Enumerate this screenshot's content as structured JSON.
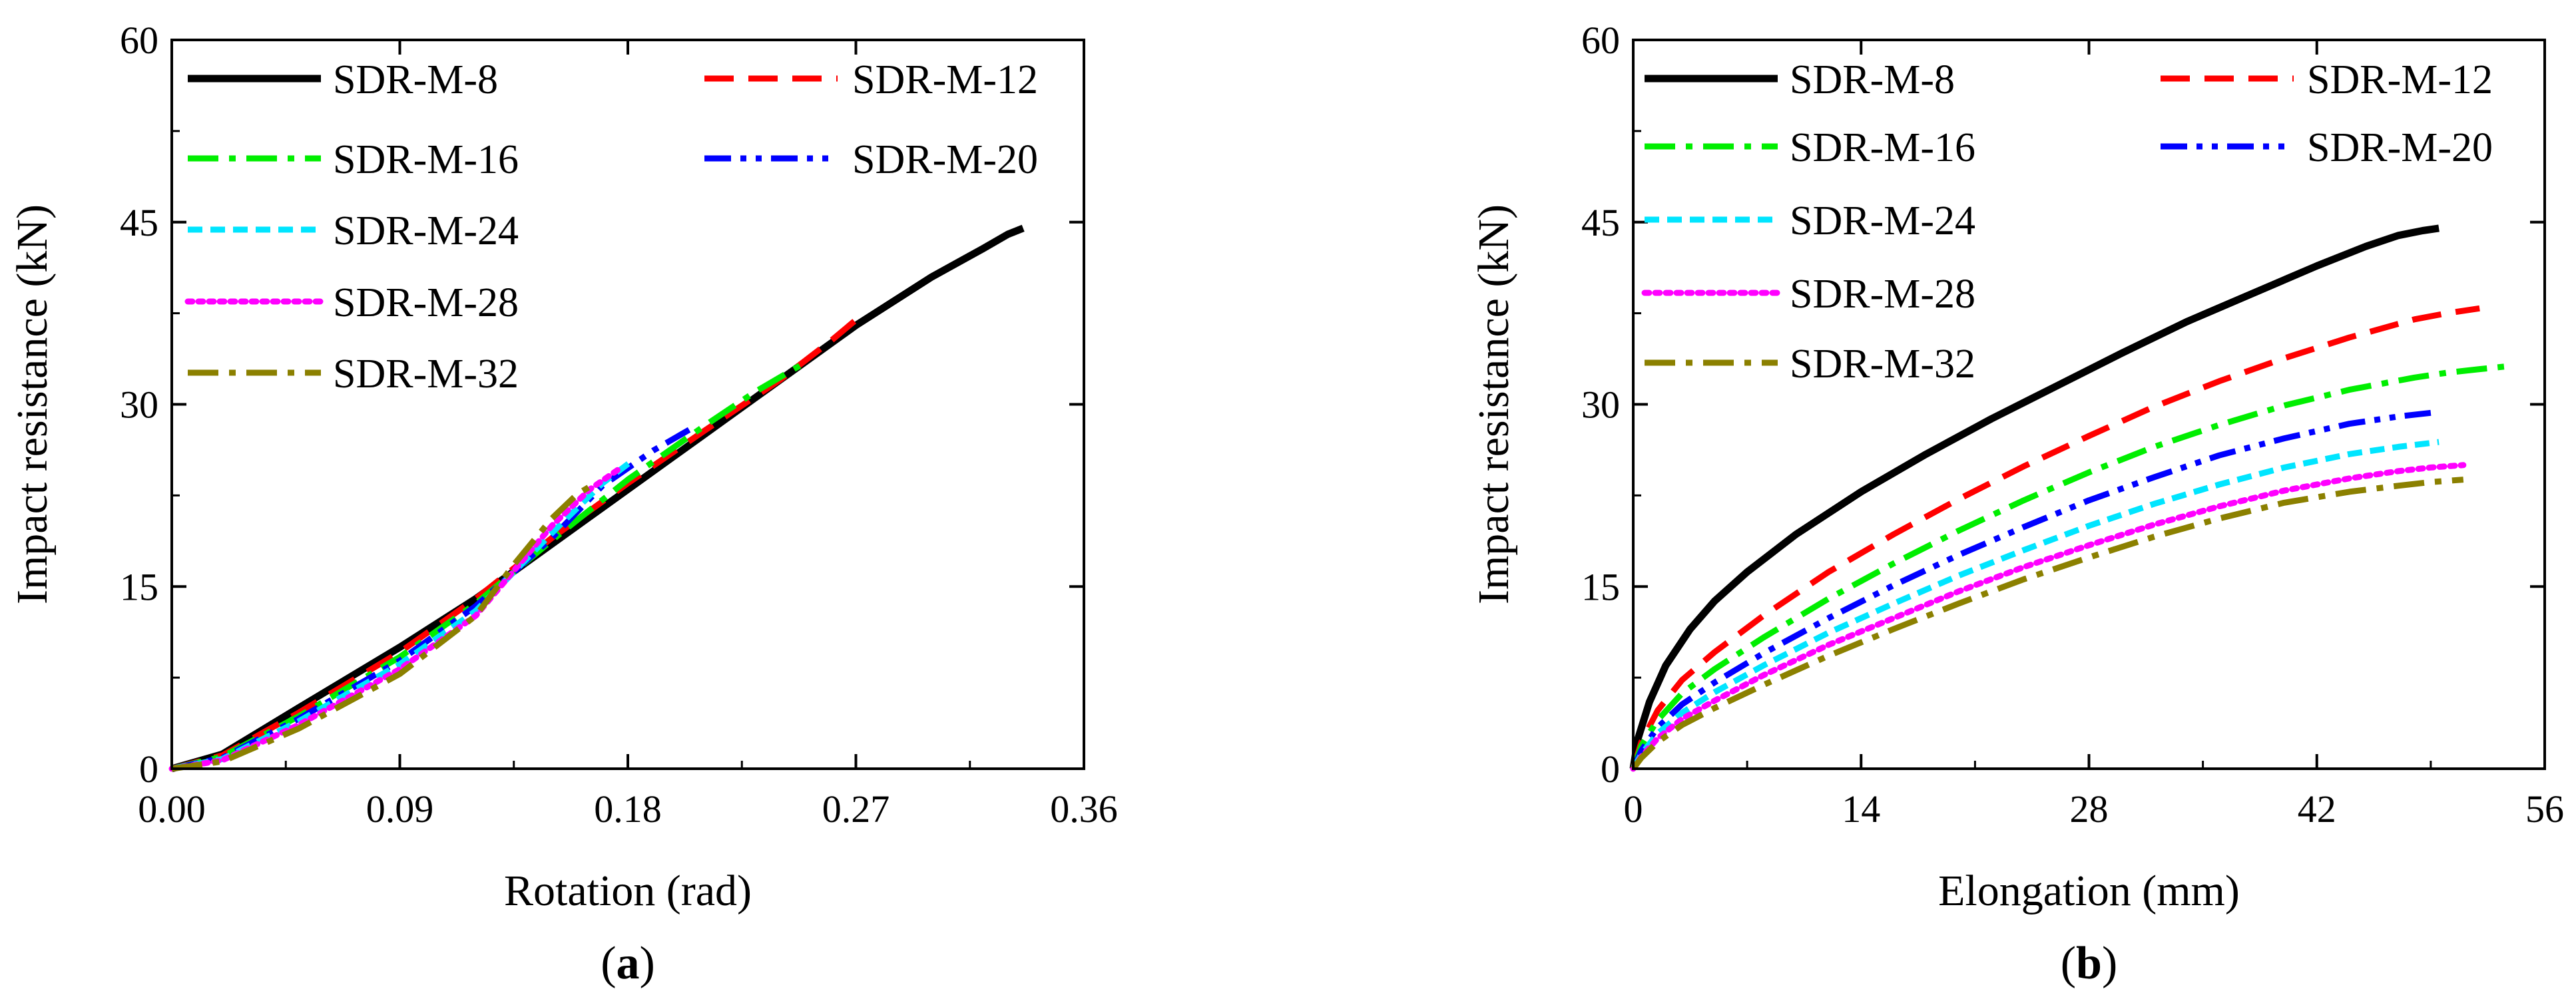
{
  "chart_data": [
    {
      "id": "a",
      "type": "line",
      "panel_label": "a",
      "title": "",
      "xlabel": "Rotation (rad)",
      "ylabel": "Impact resistance (kN)",
      "xlim": [
        0,
        0.36
      ],
      "ylim": [
        0,
        60
      ],
      "xticks": [
        0,
        0.09,
        0.18,
        0.27,
        0.36
      ],
      "xtick_labels": [
        "0.00",
        "0.09",
        "0.18",
        "0.27",
        "0.36"
      ],
      "yticks": [
        0,
        15,
        30,
        45,
        60
      ],
      "ytick_labels": [
        "0",
        "15",
        "30",
        "45",
        "60"
      ],
      "legend_position": "top-left",
      "series": [
        {
          "name": "SDR-M-8",
          "style": "solid",
          "color": "#000000",
          "x": [
            0,
            0.02,
            0.05,
            0.09,
            0.12,
            0.15,
            0.18,
            0.21,
            0.24,
            0.27,
            0.3,
            0.32,
            0.33,
            0.336
          ],
          "y": [
            0,
            1.2,
            5,
            10,
            14,
            18.5,
            23,
            27.5,
            32,
            36.5,
            40.5,
            42.8,
            44,
            44.5
          ]
        },
        {
          "name": "SDR-M-12",
          "style": "dash",
          "color": "#ff0000",
          "x": [
            0,
            0.02,
            0.05,
            0.09,
            0.12,
            0.15,
            0.18,
            0.21,
            0.24,
            0.26,
            0.272
          ],
          "y": [
            0,
            1.1,
            4.6,
            9.6,
            14,
            19,
            23.5,
            27.8,
            32,
            35.2,
            37.3
          ]
        },
        {
          "name": "SDR-M-16",
          "style": "dashdot",
          "color": "#00ee00",
          "x": [
            0,
            0.02,
            0.05,
            0.09,
            0.12,
            0.15,
            0.18,
            0.21,
            0.23,
            0.248
          ],
          "y": [
            0,
            1,
            4.3,
            9.2,
            13.6,
            18.8,
            23.8,
            28.2,
            31,
            33.2
          ]
        },
        {
          "name": "SDR-M-20",
          "style": "dashdotdot",
          "color": "#0000ff",
          "x": [
            0,
            0.02,
            0.05,
            0.09,
            0.12,
            0.15,
            0.17,
            0.19,
            0.205
          ],
          "y": [
            0,
            0.9,
            4.1,
            8.9,
            13.4,
            19,
            23.3,
            26.2,
            28
          ]
        },
        {
          "name": "SDR-M-24",
          "style": "shortdash",
          "color": "#00e5ff",
          "x": [
            0,
            0.02,
            0.05,
            0.09,
            0.12,
            0.15,
            0.17,
            0.182
          ],
          "y": [
            0,
            0.8,
            3.9,
            8.6,
            13,
            19.4,
            23.5,
            25.4
          ]
        },
        {
          "name": "SDR-M-28",
          "style": "dot",
          "color": "#ff00ff",
          "x": [
            0,
            0.02,
            0.05,
            0.09,
            0.12,
            0.15,
            0.165,
            0.176
          ],
          "y": [
            0,
            0.7,
            3.6,
            8.2,
            12.6,
            20,
            23,
            24.6
          ]
        },
        {
          "name": "SDR-M-32",
          "style": "dashdot",
          "color": "#8b8000",
          "x": [
            0,
            0.02,
            0.05,
            0.09,
            0.12,
            0.135,
            0.15,
            0.16,
            0.168
          ],
          "y": [
            0,
            0.6,
            3.3,
            7.8,
            12.6,
            16.8,
            20.6,
            22.6,
            23.6
          ]
        }
      ]
    },
    {
      "id": "b",
      "type": "line",
      "panel_label": "b",
      "title": "",
      "xlabel": "Elongation (mm)",
      "ylabel": "Impact resistance (kN)",
      "xlim": [
        0,
        56
      ],
      "ylim": [
        0,
        60
      ],
      "xticks": [
        0,
        14,
        28,
        42,
        56
      ],
      "xtick_labels": [
        "0",
        "14",
        "28",
        "42",
        "56"
      ],
      "yticks": [
        0,
        15,
        30,
        45,
        60
      ],
      "ytick_labels": [
        "0",
        "15",
        "30",
        "45",
        "60"
      ],
      "legend_position": "top-left",
      "series": [
        {
          "name": "SDR-M-8",
          "style": "solid",
          "color": "#000000",
          "x": [
            0,
            0.3,
            1,
            2,
            3.5,
            5,
            7,
            10,
            14,
            18,
            22,
            26,
            30,
            34,
            38,
            42,
            45,
            47,
            48.5,
            49.5
          ],
          "y": [
            0,
            2.5,
            5.5,
            8.5,
            11.5,
            13.8,
            16.2,
            19.3,
            22.8,
            25.9,
            28.8,
            31.5,
            34.2,
            36.8,
            39.1,
            41.4,
            43,
            43.9,
            44.3,
            44.5
          ]
        },
        {
          "name": "SDR-M-12",
          "style": "dash",
          "color": "#ff0000",
          "x": [
            0,
            0.5,
            1.5,
            3,
            5,
            8,
            12,
            16,
            20,
            24,
            28,
            32,
            36,
            40,
            44,
            48,
            50,
            52
          ],
          "y": [
            0,
            2.2,
            4.8,
            7.3,
            9.6,
            12.6,
            16.2,
            19.3,
            22.2,
            24.9,
            27.4,
            29.8,
            31.9,
            33.8,
            35.5,
            37,
            37.5,
            37.9
          ]
        },
        {
          "name": "SDR-M-16",
          "style": "dashdot",
          "color": "#00ee00",
          "x": [
            0,
            0.5,
            1.5,
            3,
            5,
            8,
            12,
            16,
            20,
            24,
            28,
            32,
            36,
            40,
            44,
            48,
            50,
            52,
            53.5
          ],
          "y": [
            0,
            1.9,
            4,
            6.2,
            8.2,
            10.8,
            14,
            16.9,
            19.6,
            22.1,
            24.4,
            26.5,
            28.3,
            29.9,
            31.2,
            32.2,
            32.6,
            32.9,
            33.1
          ]
        },
        {
          "name": "SDR-M-20",
          "style": "dashdotdot",
          "color": "#0000ff",
          "x": [
            0,
            0.5,
            1.5,
            3,
            5,
            8,
            12,
            16,
            20,
            24,
            28,
            32,
            36,
            40,
            44,
            47,
            49
          ],
          "y": [
            0,
            1.5,
            3.4,
            5.3,
            7.1,
            9.5,
            12.4,
            15.1,
            17.6,
            19.9,
            22.1,
            24,
            25.8,
            27.2,
            28.4,
            29,
            29.3
          ]
        },
        {
          "name": "SDR-M-24",
          "style": "shortdash",
          "color": "#00e5ff",
          "x": [
            0,
            0.5,
            1.5,
            3,
            5,
            8,
            12,
            16,
            20,
            24,
            28,
            32,
            36,
            40,
            44,
            47,
            49.5
          ],
          "y": [
            0,
            1.2,
            2.9,
            4.6,
            6.3,
            8.5,
            11.2,
            13.6,
            15.9,
            18,
            20,
            21.8,
            23.4,
            24.8,
            25.9,
            26.5,
            26.9
          ]
        },
        {
          "name": "SDR-M-28",
          "style": "dot",
          "color": "#ff00ff",
          "x": [
            0,
            0.5,
            1.5,
            3,
            5,
            8,
            12,
            16,
            20,
            24,
            28,
            32,
            36,
            40,
            44,
            47,
            49,
            51
          ],
          "y": [
            0,
            1,
            2.5,
            4.1,
            5.6,
            7.7,
            10.2,
            12.4,
            14.6,
            16.6,
            18.4,
            20.1,
            21.6,
            22.9,
            23.9,
            24.5,
            24.8,
            25
          ]
        },
        {
          "name": "SDR-M-32",
          "style": "dashdot",
          "color": "#8b8000",
          "x": [
            0,
            0.5,
            1.5,
            3,
            5,
            8,
            12,
            16,
            20,
            24,
            28,
            32,
            36,
            40,
            44,
            47,
            49,
            51
          ],
          "y": [
            0,
            0.9,
            2.2,
            3.6,
            5,
            6.9,
            9.3,
            11.5,
            13.6,
            15.6,
            17.4,
            19.1,
            20.6,
            21.9,
            22.8,
            23.3,
            23.6,
            23.8
          ]
        }
      ]
    }
  ]
}
